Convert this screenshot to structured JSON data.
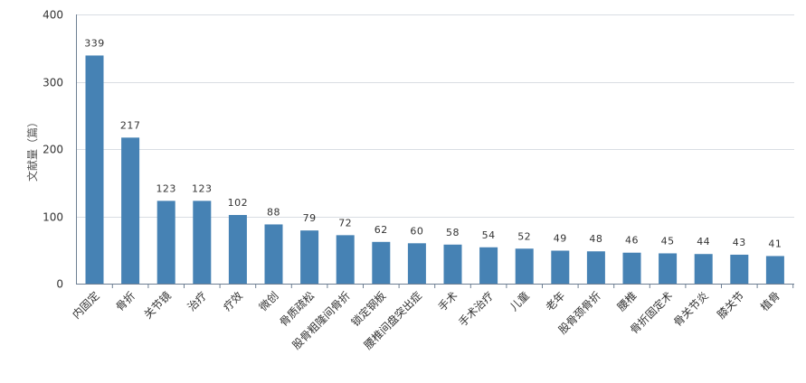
{
  "chart_data": {
    "type": "bar",
    "ylabel": "文献量（篇）",
    "ylim": [
      0,
      400
    ],
    "yticks": [
      0,
      100,
      200,
      300,
      400
    ],
    "grid": true,
    "bar_color": "#4682b4",
    "categories": [
      "内固定",
      "骨折",
      "关节镜",
      "治疗",
      "疗效",
      "微创",
      "骨质疏松",
      "股骨粗隆间骨折",
      "锁定钢板",
      "腰椎间盘突出症",
      "手术",
      "手术治疗",
      "儿童",
      "老年",
      "股骨颈骨折",
      "腰椎",
      "骨折固定术",
      "骨关节炎",
      "膝关节",
      "植骨"
    ],
    "values": [
      339,
      217,
      123,
      123,
      102,
      88,
      79,
      72,
      62,
      60,
      58,
      54,
      52,
      49,
      48,
      46,
      45,
      44,
      43,
      41
    ]
  }
}
